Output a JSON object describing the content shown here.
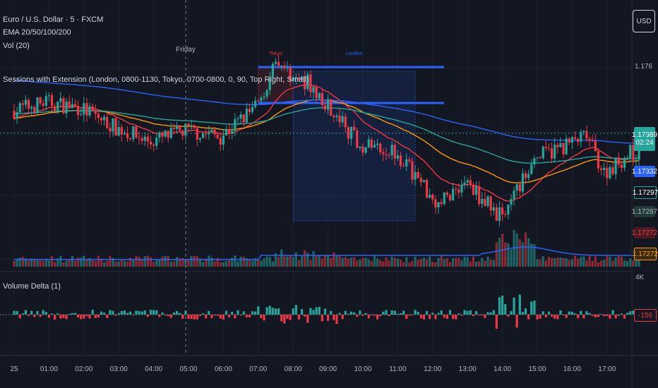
{
  "header": {
    "symbol": "Euro / U.S. Dollar · 5 · FXCM",
    "ema": "EMA 20/50/100/200",
    "vol": "Vol (20)",
    "sessions": "Sessions with Extension (London, 0800-1130, Tokyo, 0700-0800, 0, 90, Top Right, Small)",
    "delta": "Volume Delta (1)"
  },
  "currency_badge": "USD",
  "day_label": "Friday",
  "sessions": [
    {
      "name": "Tokyo",
      "start": "07:00",
      "end": "08:00",
      "color": "#f23645"
    },
    {
      "name": "London",
      "start": "08:00",
      "end": "11:30",
      "color": "#2962ff"
    }
  ],
  "price_labels": {
    "last": "1.17389",
    "countdown": "02:24",
    "ema200": "1.17332",
    "ema100": "1.17297",
    "ema50": "1.17287",
    "ema20": "1.17272",
    "ema_orange": "1.17272",
    "vol_axis": "4K",
    "delta_value": "-156"
  },
  "chart_data": {
    "type": "candlestick",
    "title": "Euro / U.S. Dollar · 5 · FXCM",
    "x_ticks": [
      "25",
      "01:00",
      "02:00",
      "03:00",
      "04:00",
      "05:00",
      "06:00",
      "07:00",
      "08:00",
      "09:00",
      "10:00",
      "11:00",
      "12:00",
      "13:00",
      "14:00",
      "15:00",
      "16:00",
      "17:00"
    ],
    "y_ticks": [
      1.176
    ],
    "price_key_points": [
      {
        "time": "00:00",
        "price": 1.1745
      },
      {
        "time": "01:00",
        "price": 1.1748
      },
      {
        "time": "02:00",
        "price": 1.1746
      },
      {
        "time": "03:00",
        "price": 1.1739
      },
      {
        "time": "04:00",
        "price": 1.1734
      },
      {
        "time": "05:00",
        "price": 1.1738
      },
      {
        "time": "06:00",
        "price": 1.1736
      },
      {
        "time": "07:00",
        "price": 1.1746
      },
      {
        "time": "07:35",
        "price": 1.1761
      },
      {
        "time": "08:30",
        "price": 1.1755
      },
      {
        "time": "09:00",
        "price": 1.1748
      },
      {
        "time": "10:00",
        "price": 1.1733
      },
      {
        "time": "11:00",
        "price": 1.1731
      },
      {
        "time": "12:15",
        "price": 1.1712
      },
      {
        "time": "13:00",
        "price": 1.172
      },
      {
        "time": "14:00",
        "price": 1.1708
      },
      {
        "time": "14:30",
        "price": 1.1716
      },
      {
        "time": "15:00",
        "price": 1.1728
      },
      {
        "time": "16:30",
        "price": 1.1736
      },
      {
        "time": "17:00",
        "price": 1.1723
      },
      {
        "time": "17:45",
        "price": 1.173
      }
    ],
    "series": [
      {
        "name": "EMA 20",
        "color": "#f23645"
      },
      {
        "name": "EMA 50",
        "color": "#ff9800"
      },
      {
        "name": "EMA 100",
        "color": "#26a69a"
      },
      {
        "name": "EMA 200",
        "color": "#2962ff"
      }
    ],
    "grid": true
  }
}
